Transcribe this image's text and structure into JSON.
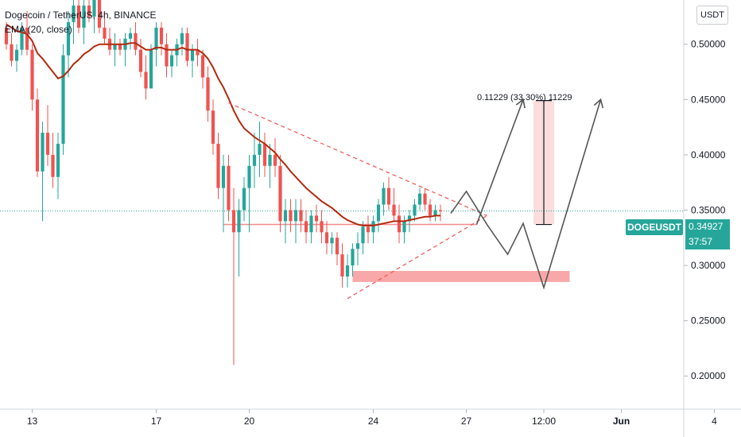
{
  "legend": {
    "title": "Dogecoin / TetherUS, 4h, BINANCE",
    "indicator": "EMA (20, close)"
  },
  "unit": "USDT",
  "symbol_badge": "DOGEUSDT",
  "last_price": "0.34927",
  "countdown": "37:57",
  "measure_label": "0.11229 (33.30%) 11229",
  "colors": {
    "up": "#26a69a",
    "down": "#ef5350",
    "ema": "#b22a0e",
    "zone": "#f8a3a3",
    "projection": "#555555",
    "last_price_line": "#26a69a"
  },
  "chart_data": {
    "type": "candlestick",
    "title": "Dogecoin / TetherUS, 4h, BINANCE",
    "ylim": [
      0.17,
      0.54
    ],
    "y_ticks": [
      {
        "label": "0.50000",
        "value": 0.5
      },
      {
        "label": "0.45000",
        "value": 0.45
      },
      {
        "label": "0.40000",
        "value": 0.4
      },
      {
        "label": "0.35000",
        "value": 0.35
      },
      {
        "label": "0.30000",
        "value": 0.3
      },
      {
        "label": "0.25000",
        "value": 0.25
      },
      {
        "label": "0.20000",
        "value": 0.2
      }
    ],
    "x_ticks": [
      {
        "label": "13",
        "index": 5
      },
      {
        "label": "17",
        "index": 29
      },
      {
        "label": "20",
        "index": 47
      },
      {
        "label": "24",
        "index": 71
      },
      {
        "label": "27",
        "index": 89
      },
      {
        "label": "12:00",
        "index": 104
      },
      {
        "label": "Jun",
        "index": 119
      },
      {
        "label": "4",
        "index": 137
      }
    ],
    "candles": [
      [
        0.515,
        0.52,
        0.495,
        0.5
      ],
      [
        0.5,
        0.51,
        0.48,
        0.485
      ],
      [
        0.485,
        0.5,
        0.475,
        0.495
      ],
      [
        0.495,
        0.52,
        0.49,
        0.515
      ],
      [
        0.515,
        0.53,
        0.49,
        0.495
      ],
      [
        0.495,
        0.5,
        0.44,
        0.45
      ],
      [
        0.45,
        0.46,
        0.38,
        0.385
      ],
      [
        0.385,
        0.43,
        0.34,
        0.42
      ],
      [
        0.42,
        0.445,
        0.39,
        0.4
      ],
      [
        0.4,
        0.42,
        0.37,
        0.38
      ],
      [
        0.38,
        0.42,
        0.36,
        0.41
      ],
      [
        0.41,
        0.5,
        0.4,
        0.49
      ],
      [
        0.49,
        0.53,
        0.47,
        0.52
      ],
      [
        0.52,
        0.545,
        0.5,
        0.535
      ],
      [
        0.535,
        0.545,
        0.51,
        0.515
      ],
      [
        0.515,
        0.54,
        0.5,
        0.535
      ],
      [
        0.535,
        0.545,
        0.52,
        0.525
      ],
      [
        0.525,
        0.545,
        0.51,
        0.54
      ],
      [
        0.54,
        0.545,
        0.51,
        0.515
      ],
      [
        0.515,
        0.53,
        0.5,
        0.505
      ],
      [
        0.505,
        0.515,
        0.49,
        0.495
      ],
      [
        0.495,
        0.51,
        0.48,
        0.5
      ],
      [
        0.5,
        0.505,
        0.49,
        0.495
      ],
      [
        0.495,
        0.51,
        0.48,
        0.505
      ],
      [
        0.505,
        0.515,
        0.495,
        0.51
      ],
      [
        0.51,
        0.52,
        0.49,
        0.495
      ],
      [
        0.495,
        0.505,
        0.47,
        0.475
      ],
      [
        0.475,
        0.49,
        0.45,
        0.46
      ],
      [
        0.46,
        0.5,
        0.46,
        0.495
      ],
      [
        0.495,
        0.52,
        0.48,
        0.515
      ],
      [
        0.515,
        0.52,
        0.49,
        0.5
      ],
      [
        0.5,
        0.51,
        0.47,
        0.48
      ],
      [
        0.48,
        0.495,
        0.47,
        0.49
      ],
      [
        0.49,
        0.505,
        0.48,
        0.5
      ],
      [
        0.5,
        0.515,
        0.49,
        0.51
      ],
      [
        0.51,
        0.515,
        0.48,
        0.485
      ],
      [
        0.485,
        0.5,
        0.47,
        0.495
      ],
      [
        0.495,
        0.505,
        0.48,
        0.49
      ],
      [
        0.49,
        0.495,
        0.46,
        0.47
      ],
      [
        0.47,
        0.48,
        0.43,
        0.44
      ],
      [
        0.44,
        0.45,
        0.4,
        0.41
      ],
      [
        0.41,
        0.42,
        0.36,
        0.37
      ],
      [
        0.37,
        0.4,
        0.33,
        0.39
      ],
      [
        0.39,
        0.4,
        0.34,
        0.35
      ],
      [
        0.35,
        0.37,
        0.21,
        0.33
      ],
      [
        0.33,
        0.36,
        0.29,
        0.35
      ],
      [
        0.35,
        0.38,
        0.34,
        0.37
      ],
      [
        0.37,
        0.4,
        0.33,
        0.39
      ],
      [
        0.39,
        0.42,
        0.37,
        0.4
      ],
      [
        0.4,
        0.43,
        0.38,
        0.41
      ],
      [
        0.41,
        0.42,
        0.38,
        0.39
      ],
      [
        0.39,
        0.41,
        0.37,
        0.4
      ],
      [
        0.4,
        0.415,
        0.38,
        0.39
      ],
      [
        0.39,
        0.4,
        0.33,
        0.34
      ],
      [
        0.34,
        0.36,
        0.32,
        0.35
      ],
      [
        0.35,
        0.36,
        0.33,
        0.34
      ],
      [
        0.34,
        0.36,
        0.32,
        0.35
      ],
      [
        0.35,
        0.36,
        0.33,
        0.34
      ],
      [
        0.34,
        0.35,
        0.32,
        0.33
      ],
      [
        0.33,
        0.35,
        0.32,
        0.345
      ],
      [
        0.345,
        0.355,
        0.33,
        0.34
      ],
      [
        0.34,
        0.35,
        0.32,
        0.33
      ],
      [
        0.33,
        0.34,
        0.31,
        0.32
      ],
      [
        0.32,
        0.33,
        0.31,
        0.325
      ],
      [
        0.325,
        0.33,
        0.3,
        0.31
      ],
      [
        0.31,
        0.32,
        0.28,
        0.29
      ],
      [
        0.29,
        0.31,
        0.28,
        0.3
      ],
      [
        0.3,
        0.32,
        0.29,
        0.315
      ],
      [
        0.315,
        0.33,
        0.3,
        0.32
      ],
      [
        0.32,
        0.34,
        0.31,
        0.335
      ],
      [
        0.335,
        0.345,
        0.32,
        0.33
      ],
      [
        0.33,
        0.345,
        0.32,
        0.34
      ],
      [
        0.34,
        0.36,
        0.33,
        0.355
      ],
      [
        0.355,
        0.375,
        0.345,
        0.37
      ],
      [
        0.37,
        0.38,
        0.35,
        0.355
      ],
      [
        0.355,
        0.37,
        0.34,
        0.345
      ],
      [
        0.345,
        0.355,
        0.32,
        0.33
      ],
      [
        0.33,
        0.345,
        0.32,
        0.34
      ],
      [
        0.34,
        0.35,
        0.33,
        0.345
      ],
      [
        0.345,
        0.36,
        0.34,
        0.355
      ],
      [
        0.355,
        0.37,
        0.35,
        0.365
      ],
      [
        0.365,
        0.37,
        0.35,
        0.355
      ],
      [
        0.355,
        0.36,
        0.34,
        0.345
      ],
      [
        0.345,
        0.355,
        0.34,
        0.35
      ],
      [
        0.35,
        0.355,
        0.34,
        0.349
      ]
    ],
    "ema": [
      0.518,
      0.515,
      0.512,
      0.511,
      0.509,
      0.503,
      0.492,
      0.487,
      0.481,
      0.475,
      0.469,
      0.471,
      0.476,
      0.482,
      0.486,
      0.491,
      0.494,
      0.498,
      0.5,
      0.5,
      0.5,
      0.5,
      0.5,
      0.5,
      0.501,
      0.501,
      0.498,
      0.495,
      0.495,
      0.497,
      0.497,
      0.495,
      0.495,
      0.495,
      0.497,
      0.495,
      0.495,
      0.495,
      0.492,
      0.487,
      0.479,
      0.469,
      0.461,
      0.451,
      0.44,
      0.431,
      0.424,
      0.42,
      0.416,
      0.413,
      0.41,
      0.406,
      0.402,
      0.396,
      0.391,
      0.385,
      0.38,
      0.375,
      0.37,
      0.366,
      0.362,
      0.358,
      0.355,
      0.352,
      0.348,
      0.344,
      0.341,
      0.339,
      0.337,
      0.336,
      0.336,
      0.336,
      0.337,
      0.338,
      0.339,
      0.34,
      0.34,
      0.34,
      0.341,
      0.342,
      0.343,
      0.344,
      0.344,
      0.345,
      0.345
    ],
    "overlays": {
      "support_zone": {
        "from_index": 67,
        "to_index": 109,
        "y_low": 0.285,
        "y_high": 0.295
      },
      "resistance_line": {
        "from_index": 42,
        "to_index": 91,
        "y": 0.337
      },
      "triangle_upper": {
        "from": [
          43,
          0.447
        ],
        "to": [
          93,
          0.345
        ]
      },
      "triangle_lower": {
        "from": [
          66,
          0.27
        ],
        "to": [
          93,
          0.345
        ]
      },
      "projection_path": [
        [
          86,
          0.347
        ],
        [
          89,
          0.367
        ],
        [
          93,
          0.337
        ],
        [
          97,
          0.31
        ],
        [
          100,
          0.338
        ],
        [
          104,
          0.28
        ],
        [
          115,
          0.45
        ]
      ],
      "projection_arrow_2": [
        [
          91,
          0.337
        ],
        [
          100,
          0.45
        ]
      ],
      "measure": {
        "index": 104,
        "y_from": 0.337,
        "y_to": 0.449,
        "shade_from_index": 102,
        "shade_to_index": 106
      },
      "last_price": 0.34927
    }
  }
}
